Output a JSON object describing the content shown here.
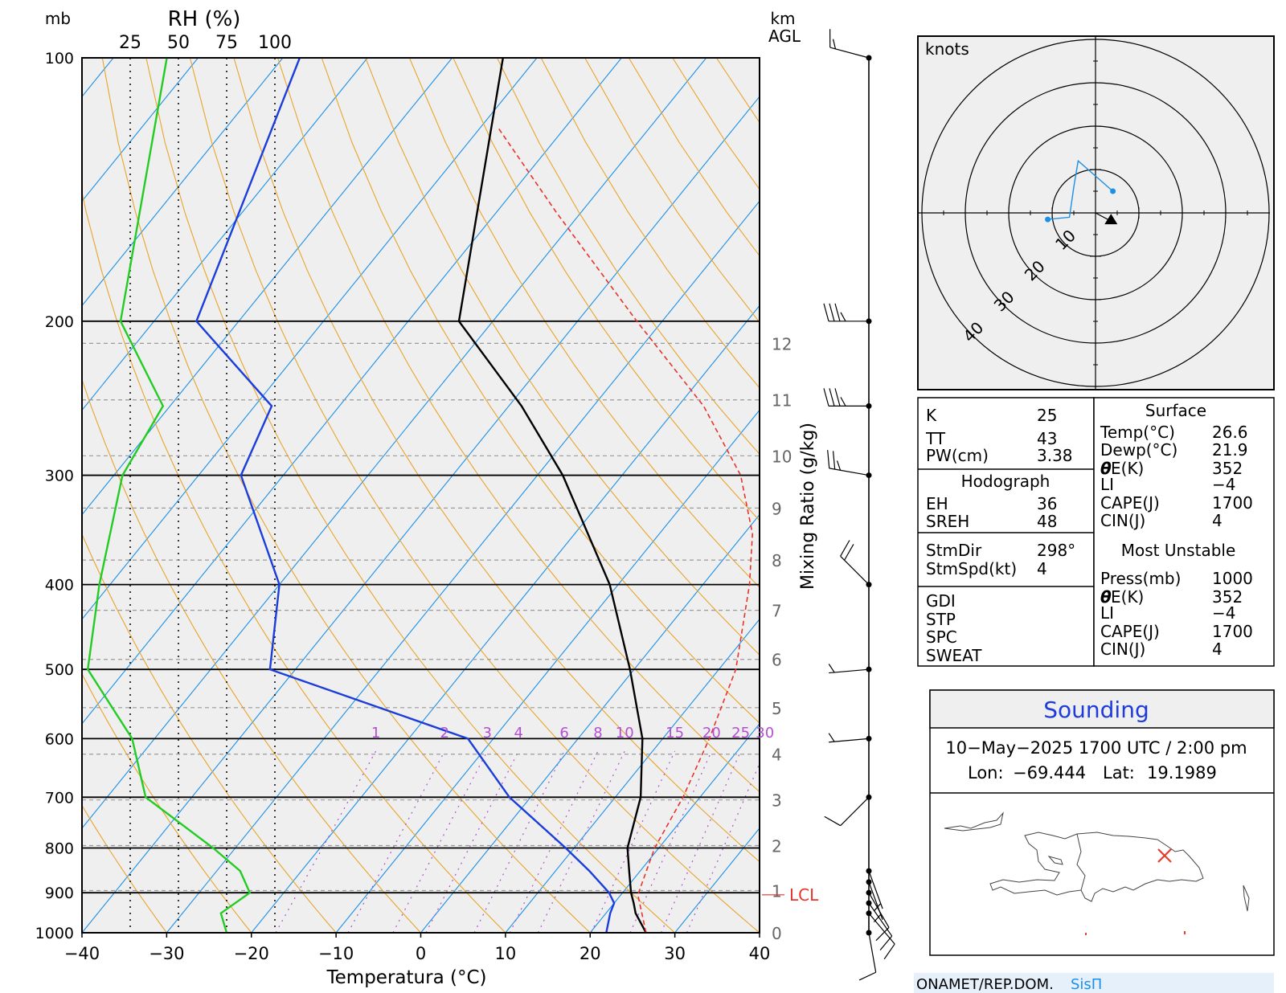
{
  "chart_data": [
    {
      "type": "line",
      "chart_kind": "skew-T log-P sounding",
      "xlabel": "Temperatura (°C)",
      "ylabel": "mb",
      "x_ticks": [
        "−40",
        "−30",
        "−20",
        "−10",
        "0",
        "10",
        "20",
        "30",
        "40"
      ],
      "xlim": [
        -40,
        40
      ],
      "ylim": [
        1000,
        100
      ],
      "y_scale": "log",
      "pressure_ticks": [
        1000,
        900,
        800,
        700,
        600,
        500,
        400,
        300,
        200,
        100
      ],
      "rh_axis_label": "RH (%)",
      "rh_ticks": [
        "25",
        "50",
        "75",
        "100"
      ],
      "km_label": "km",
      "km_label2": "AGL",
      "km_ticks": [
        "0",
        "1",
        "2",
        "3",
        "4",
        "5",
        "6",
        "7",
        "8",
        "9",
        "10",
        "11",
        "12"
      ],
      "mixing_ratio_label": "Mixing Ratio (g/kg)",
      "mixing_ratio_ticks": [
        "1",
        "2",
        "3",
        "4",
        "6",
        "8",
        "10",
        "15",
        "20",
        "25",
        "30"
      ],
      "lcl_label": "LCL",
      "lcl_pressure": 905,
      "series": [
        {
          "key": "temperature",
          "color": "#000000",
          "style": "solid",
          "points": [
            [
              1000,
              26.6
            ],
            [
              950,
              23.5
            ],
            [
              925,
              22.3
            ],
            [
              900,
              21.0
            ],
            [
              850,
              18.7
            ],
            [
              800,
              16.3
            ],
            [
              700,
              13.0
            ],
            [
              600,
              7.6
            ],
            [
              500,
              -0.5
            ],
            [
              400,
              -11.0
            ],
            [
              300,
              -27.0
            ],
            [
              250,
              -38.5
            ],
            [
              200,
              -54.0
            ],
            [
              100,
              -74.0
            ]
          ]
        },
        {
          "key": "dewpoint",
          "color": "#1a3ddb",
          "style": "solid",
          "points": [
            [
              1000,
              21.9
            ],
            [
              950,
              20.5
            ],
            [
              925,
              20.0
            ],
            [
              900,
              18.4
            ],
            [
              850,
              14.0
            ],
            [
              800,
              9.0
            ],
            [
              700,
              -2.5
            ],
            [
              600,
              -13.0
            ],
            [
              500,
              -43.0
            ],
            [
              400,
              -50.0
            ],
            [
              300,
              -65.0
            ],
            [
              250,
              -68.0
            ],
            [
              200,
              -85.0
            ],
            [
              100,
              -98.0
            ]
          ]
        },
        {
          "key": "parcel",
          "color": "#e8332b",
          "style": "dashed",
          "points": [
            [
              1000,
              26.6
            ],
            [
              905,
              22.0
            ],
            [
              800,
              19.5
            ],
            [
              700,
              18.0
            ],
            [
              600,
              15.5
            ],
            [
              500,
              12.0
            ],
            [
              400,
              5.5
            ],
            [
              350,
              1.0
            ],
            [
              300,
              -6.0
            ],
            [
              250,
              -17.0
            ],
            [
              200,
              -33.0
            ],
            [
              150,
              -53.0
            ],
            [
              120,
              -68.0
            ]
          ]
        },
        {
          "key": "relative-humidity",
          "color": "#22cc22",
          "style": "solid",
          "unit": "%",
          "points": [
            [
              1000,
              75
            ],
            [
              950,
              72
            ],
            [
              900,
              87
            ],
            [
              850,
              82
            ],
            [
              800,
              68
            ],
            [
              700,
              33
            ],
            [
              600,
              26
            ],
            [
              500,
              3
            ],
            [
              400,
              9
            ],
            [
              300,
              21
            ],
            [
              250,
              42
            ],
            [
              200,
              20
            ],
            [
              100,
              44
            ]
          ]
        }
      ]
    },
    {
      "type": "scatter",
      "chart_kind": "hodograph",
      "unit_label": "knots",
      "ring_labels": [
        "10",
        "20",
        "30",
        "40"
      ],
      "series": [
        {
          "key": "hodograph-trace",
          "color": "#1a90e8",
          "points": [
            [
              -11,
              -1.5
            ],
            [
              -6,
              -1
            ],
            [
              -5,
              6
            ],
            [
              -4,
              12
            ],
            [
              4,
              5
            ]
          ]
        }
      ],
      "storm_motion": {
        "u": 3.2,
        "v": -1.7
      }
    }
  ],
  "wind_barbs": [
    {
      "pressure": 100,
      "kts": 15,
      "from": 285
    },
    {
      "pressure": 200,
      "kts": 35,
      "from": 270
    },
    {
      "pressure": 250,
      "kts": 35,
      "from": 270
    },
    {
      "pressure": 300,
      "kts": 25,
      "from": 280
    },
    {
      "pressure": 400,
      "kts": 20,
      "from": 315
    },
    {
      "pressure": 500,
      "kts": 5,
      "from": 265
    },
    {
      "pressure": 600,
      "kts": 5,
      "from": 265
    },
    {
      "pressure": 700,
      "kts": 10,
      "from": 225
    },
    {
      "pressure": 850,
      "kts": 5,
      "from": 160
    },
    {
      "pressure": 875,
      "kts": 5,
      "from": 160
    },
    {
      "pressure": 900,
      "kts": 10,
      "from": 150
    },
    {
      "pressure": 925,
      "kts": 10,
      "from": 145
    },
    {
      "pressure": 950,
      "kts": 10,
      "from": 140
    },
    {
      "pressure": 1000,
      "kts": 10,
      "from": 170
    }
  ],
  "indices": {
    "k_label": "K",
    "k_value": "25",
    "tt_label": "TT",
    "tt_value": "43",
    "pw_label": "PW(cm)",
    "pw_value": "3.38",
    "hodograph_title": "Hodograph",
    "eh_label": "EH",
    "eh_value": "36",
    "sreh_label": "SREH",
    "sreh_value": "48",
    "stmdir_label": "StmDir",
    "stmdir_value": "298°",
    "stmspd_label": "StmSpd(kt)",
    "stmspd_value": "4",
    "gdi_label": "GDI",
    "stp_label": "STP",
    "spc_label": "SPC",
    "sweat_label": "SWEAT"
  },
  "surface": {
    "title": "Surface",
    "temp_label": "Temp(°C)",
    "temp_value": "26.6",
    "dewp_label": "Dewp(°C)",
    "dewp_value": "21.9",
    "thetae_sub": "E(K)",
    "thetae_value": "352",
    "li_label": "LI",
    "li_value": "−4",
    "cape_label": "CAPE(J)",
    "cape_value": "1700",
    "cin_label": "CIN(J)",
    "cin_value": "4"
  },
  "most_unstable": {
    "title": "Most Unstable",
    "press_label": "Press(mb)",
    "press_value": "1000",
    "thetae_sub": "E(K)",
    "thetae_value": "352",
    "li_label": "LI",
    "li_value": "−4",
    "cape_label": "CAPE(J)",
    "cape_value": "1700",
    "cin_label": "CIN(J)",
    "cin_value": "4"
  },
  "station": {
    "title": "Sounding",
    "datetime": "10−May−2025 1700  UTC / 2:00 pm",
    "lon_label": "Lon:",
    "lon_value": "−69.444",
    "lat_label": "Lat:",
    "lat_value": "19.1989"
  },
  "footer": {
    "org": "ONAMET/REP.DOM.",
    "brand": "SisΠ"
  },
  "colors": {
    "background_plot": "#efefef",
    "isotherm": "#1a90e8",
    "dry_adiabat": "#e8a52b",
    "mixing_ratio": "#b44fd2",
    "rh": "#22cc22",
    "temperature": "#000000",
    "dewpoint": "#1a3ddb",
    "parcel": "#e8332b",
    "marker": "#e83b2b",
    "sounding_title": "#1f3bdc"
  }
}
